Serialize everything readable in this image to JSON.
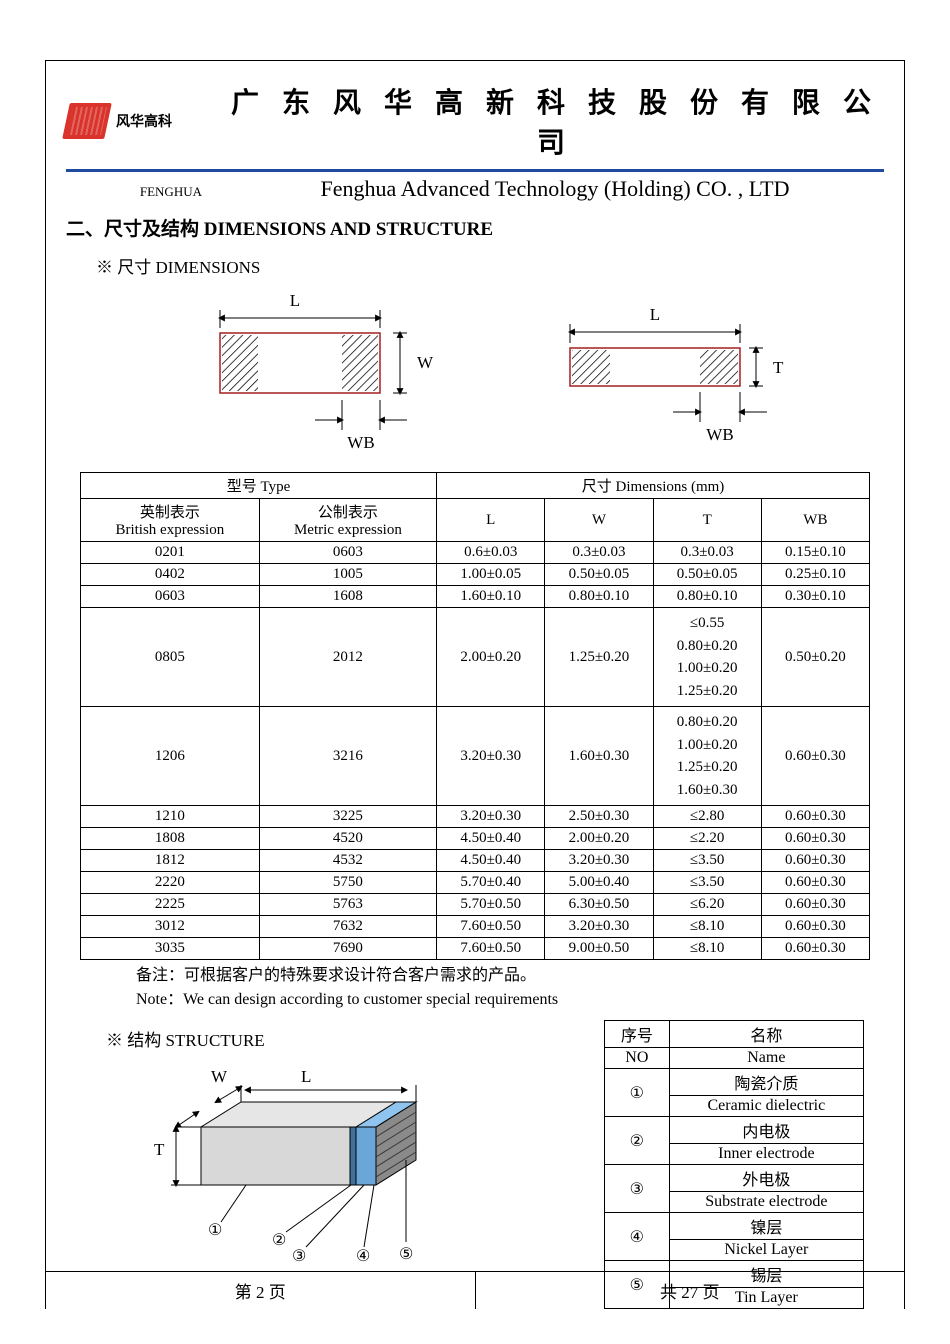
{
  "header": {
    "logo_text": "风华高科",
    "title_cn": "广 东 风 华 高 新 科 技 股 份 有 限 公 司",
    "fenghua_caps": "FENGHUA",
    "title_en": "Fenghua Advanced Technology (Holding) CO. , LTD"
  },
  "section": {
    "title": "二、尺寸及结构    DIMENSIONS AND STRUCTURE",
    "dim_sub": "※ 尺寸 DIMENSIONS",
    "struct_sub": "※ 结构 STRUCTURE"
  },
  "diagram_labels": {
    "L": "L",
    "W": "W",
    "T": "T",
    "WB": "WB"
  },
  "dim_table": {
    "header_type": "型号 Type",
    "header_dims": "尺寸      Dimensions      (mm)",
    "col_brit_cn": "英制表示",
    "col_brit_en": "British expression",
    "col_metr_cn": "公制表示",
    "col_metr_en": "Metric expression",
    "col_L": "L",
    "col_W": "W",
    "col_T": "T",
    "col_WB": "WB",
    "rows": [
      {
        "b": "0201",
        "m": "0603",
        "L": "0.6±0.03",
        "W": "0.3±0.03",
        "T": "0.3±0.03",
        "WB": "0.15±0.10"
      },
      {
        "b": "0402",
        "m": "1005",
        "L": "1.00±0.05",
        "W": "0.50±0.05",
        "T": "0.50±0.05",
        "WB": "0.25±0.10"
      },
      {
        "b": "0603",
        "m": "1608",
        "L": "1.60±0.10",
        "W": "0.80±0.10",
        "T": "0.80±0.10",
        "WB": "0.30±0.10"
      },
      {
        "b": "0805",
        "m": "2012",
        "L": "2.00±0.20",
        "W": "1.25±0.20",
        "T": "≤0.55\n0.80±0.20\n1.00±0.20\n1.25±0.20",
        "WB": "0.50±0.20"
      },
      {
        "b": "1206",
        "m": "3216",
        "L": "3.20±0.30",
        "W": "1.60±0.30",
        "T": "0.80±0.20\n1.00±0.20\n1.25±0.20\n1.60±0.30",
        "WB": "0.60±0.30"
      },
      {
        "b": "1210",
        "m": "3225",
        "L": "3.20±0.30",
        "W": "2.50±0.30",
        "T": "≤2.80",
        "WB": "0.60±0.30"
      },
      {
        "b": "1808",
        "m": "4520",
        "L": "4.50±0.40",
        "W": "2.00±0.20",
        "T": "≤2.20",
        "WB": "0.60±0.30"
      },
      {
        "b": "1812",
        "m": "4532",
        "L": "4.50±0.40",
        "W": "3.20±0.30",
        "T": "≤3.50",
        "WB": "0.60±0.30"
      },
      {
        "b": "2220",
        "m": "5750",
        "L": "5.70±0.40",
        "W": "5.00±0.40",
        "T": "≤3.50",
        "WB": "0.60±0.30"
      },
      {
        "b": "2225",
        "m": "5763",
        "L": "5.70±0.50",
        "W": "6.30±0.50",
        "T": "≤6.20",
        "WB": "0.60±0.30"
      },
      {
        "b": "3012",
        "m": "7632",
        "L": "7.60±0.50",
        "W": "3.20±0.30",
        "T": "≤8.10",
        "WB": "0.60±0.30"
      },
      {
        "b": "3035",
        "m": "7690",
        "L": "7.60±0.50",
        "W": "9.00±0.50",
        "T": "≤8.10",
        "WB": "0.60±0.30"
      }
    ]
  },
  "notes": {
    "cn": "备注：可根据客户的特殊要求设计符合客户需求的产品。",
    "en": "Note：We can design according to customer special requirements"
  },
  "struct_table": {
    "h_no_cn": "序号",
    "h_no_en": "NO",
    "h_name_cn": "名称",
    "h_name_en": "Name",
    "rows": [
      {
        "no": "①",
        "cn": "陶瓷介质",
        "en": "Ceramic   dielectric"
      },
      {
        "no": "②",
        "cn": "内电极",
        "en": "Inner   electrode"
      },
      {
        "no": "③",
        "cn": "外电极",
        "en": "Substrate   electrode"
      },
      {
        "no": "④",
        "cn": "镍层",
        "en": "Nickel Layer"
      },
      {
        "no": "⑤",
        "cn": "锡层",
        "en": "Tin Layer"
      }
    ]
  },
  "struct_diagram": {
    "W": "W",
    "L": "L",
    "T": "T",
    "n1": "①",
    "n2": "②",
    "n3": "③",
    "n4": "④",
    "n5": "⑤"
  },
  "footer": {
    "left": "第   2   页",
    "right": "共  27  页"
  },
  "colors": {
    "rule": "#1f4aa0",
    "logo": "#d9332b",
    "hatch": "#000000",
    "struct_body": "#d8d8d8",
    "struct_end": "#6aa6d8",
    "struct_end_dark": "#3f719d",
    "struct_side": "#9e9e9e"
  }
}
